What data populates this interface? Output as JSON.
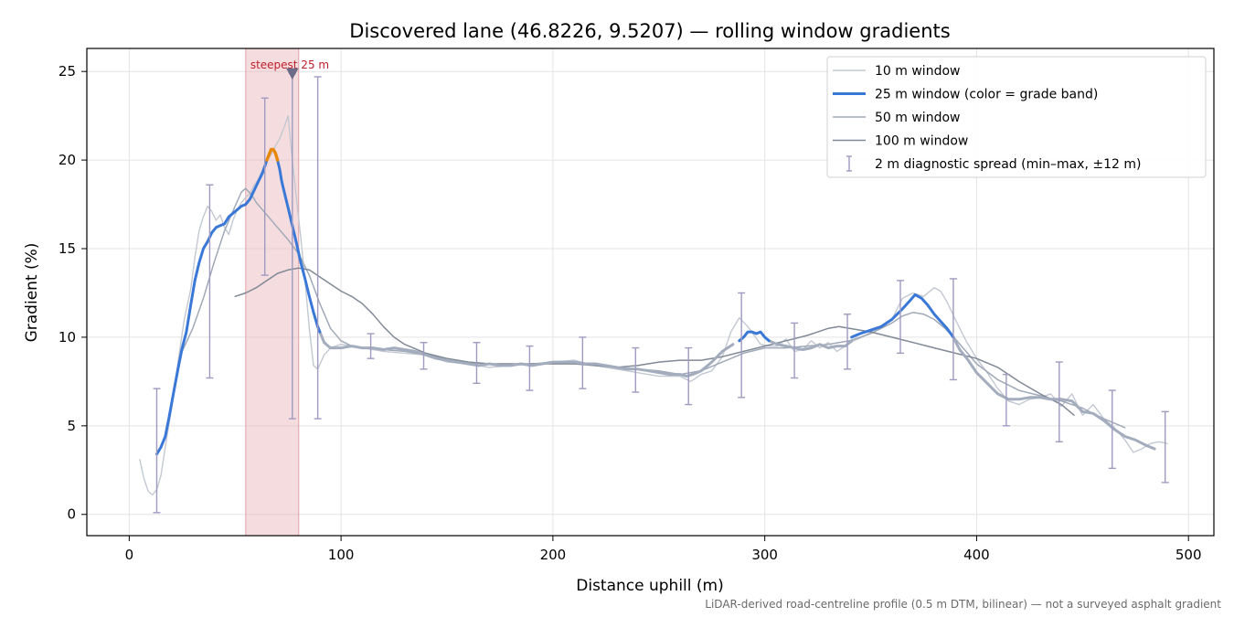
{
  "chart_data": {
    "type": "line",
    "title": "Discovered lane (46.8226, 9.5207) — rolling window gradients",
    "xlabel": "Distance uphill (m)",
    "ylabel": "Gradient (%)",
    "xlim": [
      -20,
      512
    ],
    "ylim": [
      -1.2,
      26.3
    ],
    "x_ticks": [
      0,
      100,
      200,
      300,
      400,
      500
    ],
    "y_ticks": [
      0,
      5,
      10,
      15,
      20,
      25
    ],
    "grid": true,
    "legend_position": "top-right",
    "footnote": "LiDAR-derived road-centreline profile (0.5 m DTM, bilinear) — not a surveyed asphalt gradient",
    "highlight": {
      "label": "steepest 25 m",
      "x_start": 55,
      "x_end": 80,
      "marker_x": 77,
      "marker_y": 24.9,
      "color": "#e9b4b8"
    },
    "series": [
      {
        "name": "10 m window",
        "color": "#c3c8d2",
        "x": [
          5,
          7,
          9,
          11,
          13,
          15,
          17,
          20,
          23,
          26,
          29,
          31,
          33,
          35,
          37,
          39,
          41,
          43,
          45,
          47,
          49,
          51,
          53,
          55,
          57,
          59,
          61,
          63,
          65,
          67,
          69,
          71,
          73,
          75,
          77,
          79,
          81,
          83,
          85,
          87,
          89,
          92,
          95,
          100,
          110,
          120,
          130,
          140,
          150,
          160,
          170,
          180,
          190,
          200,
          210,
          220,
          230,
          240,
          250,
          260,
          265,
          270,
          275,
          280,
          284,
          288,
          292,
          295,
          298,
          302,
          306,
          310,
          314,
          318,
          322,
          326,
          330,
          334,
          338,
          342,
          346,
          350,
          355,
          360,
          365,
          370,
          375,
          380,
          383,
          386,
          390,
          395,
          400,
          405,
          410,
          415,
          420,
          425,
          430,
          435,
          440,
          445,
          450,
          455,
          460,
          465,
          470,
          474,
          478,
          482,
          486,
          490
        ],
        "y": [
          3.1,
          2.0,
          1.3,
          1.1,
          1.4,
          2.2,
          3.8,
          6.0,
          8.6,
          11.0,
          12.7,
          14.5,
          16.0,
          16.8,
          17.4,
          17.1,
          16.6,
          16.9,
          16.2,
          15.8,
          16.6,
          17.2,
          17.6,
          17.9,
          18.1,
          18.6,
          18.9,
          19.5,
          20.0,
          20.3,
          20.8,
          21.2,
          21.8,
          22.5,
          20.0,
          17.8,
          15.6,
          13.2,
          10.5,
          8.4,
          8.2,
          9.0,
          9.4,
          9.6,
          9.4,
          9.2,
          9.1,
          9.0,
          8.6,
          8.5,
          8.3,
          8.4,
          8.5,
          8.6,
          8.7,
          8.4,
          8.2,
          8.0,
          7.8,
          7.8,
          7.5,
          7.9,
          8.1,
          8.9,
          10.3,
          11.1,
          10.6,
          10.1,
          9.6,
          9.5,
          9.5,
          9.9,
          9.2,
          9.3,
          9.8,
          9.4,
          9.7,
          9.2,
          9.5,
          9.8,
          10.0,
          10.3,
          10.5,
          11.0,
          12.2,
          12.5,
          12.3,
          12.8,
          12.6,
          12.0,
          11.0,
          9.8,
          8.8,
          8.0,
          7.1,
          6.4,
          6.2,
          6.5,
          6.6,
          6.8,
          6.1,
          6.8,
          5.6,
          6.2,
          5.4,
          4.9,
          4.2,
          3.5,
          3.7,
          4.0,
          4.1,
          4.0
        ]
      },
      {
        "name": "25 m window (color = grade band)",
        "color": "#3a78d8",
        "highlight_color": "#e8880a",
        "highlight_threshold": 20,
        "x": [
          13,
          15,
          17,
          19,
          21,
          23,
          25,
          27,
          29,
          31,
          33,
          35,
          37,
          39,
          41,
          43,
          45,
          47,
          49,
          51,
          53,
          55,
          57,
          59,
          61,
          63,
          65,
          66,
          67,
          68,
          69,
          70,
          71,
          72,
          73,
          75,
          77,
          79,
          81,
          83,
          85,
          87,
          89,
          90
        ],
        "y": [
          3.4,
          3.8,
          4.4,
          5.6,
          6.9,
          8.2,
          9.4,
          10.3,
          11.8,
          13.2,
          14.2,
          15.0,
          15.4,
          15.9,
          16.2,
          16.3,
          16.4,
          16.8,
          17.0,
          17.2,
          17.4,
          17.5,
          17.8,
          18.3,
          18.8,
          19.3,
          20.0,
          20.3,
          20.6,
          20.6,
          20.4,
          20.0,
          19.5,
          18.8,
          18.3,
          17.3,
          16.3,
          15.3,
          14.2,
          13.3,
          12.3,
          11.4,
          10.6,
          10.3
        ]
      },
      {
        "name": "25 m window (color = grade band)",
        "color": "#a3adbd",
        "x": [
          90,
          92,
          95,
          100,
          105,
          110,
          115,
          120,
          125,
          130,
          135,
          140,
          145,
          150,
          155,
          160,
          165,
          170,
          175,
          180,
          185,
          190,
          195,
          200,
          205,
          210,
          215,
          220,
          225,
          230,
          235,
          240,
          245,
          250,
          255,
          260,
          263,
          266,
          270,
          275,
          280,
          285
        ],
        "y": [
          10.3,
          9.7,
          9.4,
          9.4,
          9.5,
          9.4,
          9.4,
          9.3,
          9.4,
          9.3,
          9.2,
          9.0,
          8.8,
          8.7,
          8.6,
          8.5,
          8.4,
          8.5,
          8.4,
          8.4,
          8.5,
          8.4,
          8.5,
          8.6,
          8.6,
          8.6,
          8.5,
          8.5,
          8.4,
          8.3,
          8.2,
          8.2,
          8.1,
          8.0,
          7.9,
          7.9,
          7.8,
          7.9,
          8.1,
          8.6,
          9.2,
          9.6
        ]
      },
      {
        "name": "25 m window (color = grade band)",
        "color": "#3a78d8",
        "x": [
          288,
          290,
          292,
          294,
          296,
          298,
          300,
          302
        ],
        "y": [
          9.8,
          10.0,
          10.3,
          10.3,
          10.2,
          10.3,
          10.0,
          9.8
        ]
      },
      {
        "name": "25 m window (color = grade band)",
        "color": "#a3adbd",
        "x": [
          302,
          306,
          310,
          314,
          318,
          322,
          326,
          330,
          334,
          338,
          341
        ],
        "y": [
          9.8,
          9.6,
          9.5,
          9.4,
          9.3,
          9.4,
          9.6,
          9.4,
          9.5,
          9.5,
          9.8
        ]
      },
      {
        "name": "25 m window (color = grade band)",
        "color": "#3a78d8",
        "x": [
          341,
          345,
          350,
          355,
          360,
          365,
          368,
          371,
          374,
          377,
          380,
          383,
          386,
          389
        ],
        "y": [
          10.0,
          10.2,
          10.4,
          10.6,
          11.0,
          11.6,
          12.0,
          12.4,
          12.2,
          11.8,
          11.3,
          10.9,
          10.5,
          10.0
        ]
      },
      {
        "name": "25 m window (color = grade band)",
        "color": "#a3adbd",
        "x": [
          389,
          392,
          396,
          400,
          405,
          410,
          415,
          420,
          425,
          430,
          435,
          440,
          445,
          450,
          455,
          460,
          465,
          470,
          475,
          480,
          484
        ],
        "y": [
          10.0,
          9.3,
          8.7,
          8.0,
          7.4,
          6.8,
          6.5,
          6.5,
          6.6,
          6.6,
          6.5,
          6.5,
          6.4,
          5.8,
          5.7,
          5.3,
          4.8,
          4.4,
          4.2,
          3.9,
          3.7
        ]
      },
      {
        "name": "50 m window",
        "color": "#a0a9b8",
        "x": [
          25,
          30,
          35,
          40,
          45,
          50,
          53,
          55,
          58,
          60,
          65,
          70,
          75,
          80,
          85,
          90,
          95,
          100,
          105,
          110,
          120,
          130,
          140,
          150,
          160,
          170,
          180,
          190,
          200,
          210,
          220,
          230,
          240,
          250,
          260,
          270,
          280,
          290,
          300,
          310,
          320,
          330,
          340,
          350,
          360,
          365,
          370,
          375,
          380,
          385,
          390,
          395,
          400,
          410,
          420,
          430,
          440,
          450,
          460,
          470
        ],
        "y": [
          9.2,
          10.5,
          12.2,
          14.2,
          16.0,
          17.4,
          18.2,
          18.4,
          18.0,
          17.6,
          16.9,
          16.2,
          15.5,
          14.7,
          13.5,
          11.9,
          10.5,
          9.8,
          9.5,
          9.4,
          9.3,
          9.2,
          9.0,
          8.8,
          8.6,
          8.5,
          8.4,
          8.5,
          8.5,
          8.5,
          8.4,
          8.3,
          8.2,
          8.1,
          7.9,
          8.1,
          8.6,
          9.1,
          9.4,
          9.4,
          9.5,
          9.6,
          9.8,
          10.2,
          10.8,
          11.2,
          11.4,
          11.3,
          11.0,
          10.5,
          9.9,
          9.2,
          8.5,
          7.6,
          7.0,
          6.7,
          6.4,
          6.0,
          5.4,
          4.9
        ]
      },
      {
        "name": "100 m window",
        "color": "#808996",
        "x": [
          50,
          55,
          60,
          65,
          70,
          75,
          80,
          85,
          90,
          95,
          100,
          105,
          110,
          115,
          120,
          125,
          130,
          140,
          150,
          160,
          170,
          180,
          190,
          200,
          210,
          220,
          230,
          240,
          250,
          260,
          270,
          280,
          290,
          300,
          310,
          320,
          330,
          335,
          340,
          350,
          360,
          370,
          380,
          390,
          400,
          410,
          420,
          430,
          440,
          446
        ],
        "y": [
          12.3,
          12.5,
          12.8,
          13.2,
          13.6,
          13.8,
          13.9,
          13.8,
          13.4,
          13.0,
          12.6,
          12.3,
          11.9,
          11.3,
          10.6,
          10.0,
          9.6,
          9.1,
          8.8,
          8.6,
          8.5,
          8.5,
          8.5,
          8.5,
          8.5,
          8.4,
          8.3,
          8.4,
          8.6,
          8.7,
          8.7,
          8.9,
          9.2,
          9.5,
          9.8,
          10.1,
          10.5,
          10.6,
          10.5,
          10.3,
          10.0,
          9.7,
          9.4,
          9.1,
          8.8,
          8.3,
          7.5,
          6.8,
          6.2,
          5.6
        ]
      }
    ],
    "diagnostic_spread": {
      "name": "2 m diagnostic spread (min–max, ±12 m)",
      "color": "#9e9ac0",
      "points": [
        {
          "x": 13,
          "y_min": 0.1,
          "y_max": 7.1
        },
        {
          "x": 38,
          "y_min": 7.7,
          "y_max": 18.6
        },
        {
          "x": 64,
          "y_min": 13.5,
          "y_max": 23.5
        },
        {
          "x": 77,
          "y_min": 5.4,
          "y_max": 24.9
        },
        {
          "x": 89,
          "y_min": 5.4,
          "y_max": 24.7
        },
        {
          "x": 114,
          "y_min": 8.8,
          "y_max": 10.2
        },
        {
          "x": 139,
          "y_min": 8.2,
          "y_max": 9.7
        },
        {
          "x": 164,
          "y_min": 7.4,
          "y_max": 9.7
        },
        {
          "x": 189,
          "y_min": 7.0,
          "y_max": 9.5
        },
        {
          "x": 214,
          "y_min": 7.1,
          "y_max": 10.0
        },
        {
          "x": 239,
          "y_min": 6.9,
          "y_max": 9.4
        },
        {
          "x": 264,
          "y_min": 6.2,
          "y_max": 9.4
        },
        {
          "x": 289,
          "y_min": 6.6,
          "y_max": 12.5
        },
        {
          "x": 314,
          "y_min": 7.7,
          "y_max": 10.8
        },
        {
          "x": 339,
          "y_min": 8.2,
          "y_max": 11.3
        },
        {
          "x": 364,
          "y_min": 9.1,
          "y_max": 13.2
        },
        {
          "x": 389,
          "y_min": 7.6,
          "y_max": 13.3
        },
        {
          "x": 414,
          "y_min": 5.0,
          "y_max": 7.9
        },
        {
          "x": 439,
          "y_min": 4.1,
          "y_max": 8.6
        },
        {
          "x": 464,
          "y_min": 2.6,
          "y_max": 7.0
        },
        {
          "x": 489,
          "y_min": 1.8,
          "y_max": 5.8
        }
      ]
    },
    "legend": [
      {
        "label": "10 m window",
        "color": "#c3c8d2",
        "kind": "line-thin"
      },
      {
        "label": "25 m window (color = grade band)",
        "color": "#3a78d8",
        "kind": "line-thick"
      },
      {
        "label": "50 m window",
        "color": "#a0a9b8",
        "kind": "line"
      },
      {
        "label": "100 m window",
        "color": "#808996",
        "kind": "line"
      },
      {
        "label": "2 m diagnostic spread (min–max, ±12 m)",
        "color": "#9e9ac0",
        "kind": "errorbar"
      }
    ]
  }
}
